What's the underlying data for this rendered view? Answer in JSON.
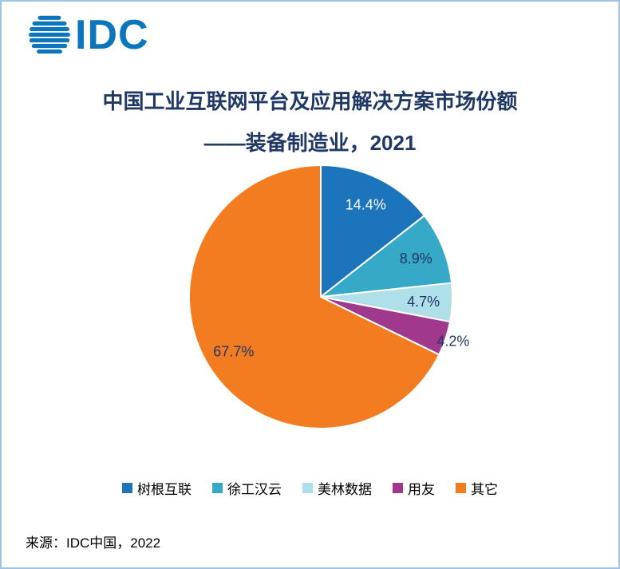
{
  "page": {
    "background": "#FFFFFF",
    "border_color": "#9DC3E6"
  },
  "logo": {
    "text": "IDC",
    "color": "#0B76BD"
  },
  "title": {
    "line1": "中国工业互联网平台及应用解决方案市场份额",
    "line2": "——装备制造业，2021",
    "color": "#1F3864"
  },
  "source": {
    "text": "来源：IDC中国，2022",
    "color": "#000000"
  },
  "chart_data": {
    "type": "pie",
    "title": "中国工业互联网平台及应用解决方案市场份额——装备制造业，2021",
    "categories": [
      "树根互联",
      "徐工汉云",
      "美林数据",
      "用友",
      "其它"
    ],
    "values": [
      14.4,
      8.9,
      4.7,
      4.2,
      67.7
    ],
    "labels": [
      "14.4%",
      "8.9%",
      "4.7%",
      "4.2%",
      "67.7%"
    ],
    "unit": "%",
    "colors": [
      "#1C75BC",
      "#36A9C9",
      "#AFDFE8",
      "#A0388E",
      "#F47C20"
    ],
    "label_colors": [
      "#FFFFFF",
      "#1F3864",
      "#1F3864",
      "#1F3864",
      "#1F3864"
    ],
    "label_placement": [
      "inside",
      "inside",
      "inside",
      "outside",
      "inside"
    ],
    "start_angle_deg": 0,
    "direction": "clockwise",
    "slice_border_color": "#FFFFFF",
    "legend_position": "bottom",
    "legend_text_color": "#000000"
  }
}
